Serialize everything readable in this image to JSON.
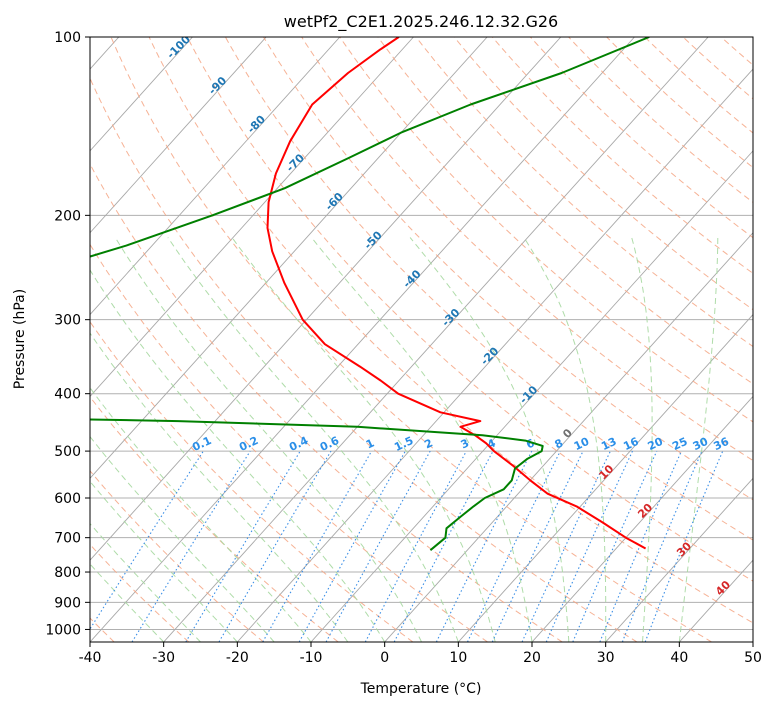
{
  "chart_data": {
    "type": "line",
    "title": "wetPf2_C2E1.2025.246.12.32.G26",
    "xlabel": "Temperature (°C)",
    "ylabel": "Pressure (hPa)",
    "xlim": [
      -40,
      50
    ],
    "ylim": [
      1050,
      100
    ],
    "x_ticks": [
      -40,
      -30,
      -20,
      -10,
      0,
      10,
      20,
      30,
      40,
      50
    ],
    "y_ticks": [
      100,
      200,
      300,
      400,
      500,
      600,
      700,
      800,
      900,
      1000
    ],
    "series": [
      {
        "name": "Temperature",
        "color": "#ff0000",
        "points": [
          [
            -72.0,
            100
          ],
          [
            -73.0,
            105
          ],
          [
            -74.5,
            115
          ],
          [
            -75.5,
            130
          ],
          [
            -74.0,
            150
          ],
          [
            -72.0,
            170
          ],
          [
            -69.5,
            190
          ],
          [
            -66.5,
            210
          ],
          [
            -63.0,
            230
          ],
          [
            -57.5,
            260
          ],
          [
            -50.5,
            300
          ],
          [
            -44.5,
            330
          ],
          [
            -37.0,
            360
          ],
          [
            -32.5,
            380
          ],
          [
            -28.5,
            400
          ],
          [
            -20.5,
            430
          ],
          [
            -14.0,
            445
          ],
          [
            -16.0,
            455
          ],
          [
            -13.0,
            470
          ],
          [
            -10.5,
            485
          ],
          [
            -8.5,
            500
          ],
          [
            -4.0,
            530
          ],
          [
            0.0,
            560
          ],
          [
            4.0,
            590
          ],
          [
            9.5,
            620
          ],
          [
            15.0,
            660
          ],
          [
            20.0,
            700
          ],
          [
            24.0,
            730
          ]
        ]
      },
      {
        "name": "Dewpoint",
        "color": "#008000",
        "points": [
          [
            -38.0,
            100
          ],
          [
            -45.5,
            115
          ],
          [
            -54.0,
            130
          ],
          [
            -60.0,
            145
          ],
          [
            -64.0,
            160
          ],
          [
            -69.0,
            180
          ],
          [
            -75.5,
            200
          ],
          [
            -83.5,
            225
          ],
          [
            -89.0,
            240
          ],
          [
            -108.0,
            260
          ],
          [
            -110.5,
            270
          ],
          [
            -109.0,
            285
          ],
          [
            -110.0,
            310
          ],
          [
            -115.5,
            340
          ],
          [
            -121.0,
            365
          ],
          [
            -146.0,
            395
          ],
          [
            -115.0,
            405
          ],
          [
            -142.0,
            420
          ],
          [
            -120.0,
            430
          ],
          [
            -55.0,
            445
          ],
          [
            -30.0,
            455
          ],
          [
            -12.0,
            470
          ],
          [
            -5.5,
            480
          ],
          [
            -2.5,
            490
          ],
          [
            -2.0,
            500
          ],
          [
            -3.0,
            515
          ],
          [
            -3.5,
            535
          ],
          [
            -2.5,
            560
          ],
          [
            -2.5,
            580
          ],
          [
            -4.0,
            600
          ],
          [
            -4.5,
            620
          ],
          [
            -5.0,
            645
          ],
          [
            -5.5,
            675
          ],
          [
            -4.5,
            700
          ],
          [
            -5.0,
            735
          ]
        ]
      }
    ],
    "dry_adiabat_labels": [
      "-100",
      "-90",
      "-80",
      "-70",
      "-60",
      "-50",
      "-40",
      "-30",
      "-20",
      "-10",
      "0",
      "10",
      "20",
      "30",
      "40"
    ],
    "dry_adiabat_label_values": [
      -100,
      -90,
      -80,
      -70,
      -60,
      -50,
      -40,
      -30,
      -20,
      -10,
      0,
      10,
      20,
      30,
      40
    ],
    "mixing_ratio_labels": [
      "0.1",
      "0.2",
      "0.4",
      "0.6",
      "1",
      "1.5",
      "2",
      "3",
      "4",
      "6",
      "8",
      "10",
      "13",
      "16",
      "20",
      "25",
      "30",
      "36"
    ],
    "mixing_ratio_values": [
      0.1,
      0.2,
      0.4,
      0.6,
      1,
      1.5,
      2,
      3,
      4,
      6,
      8,
      10,
      13,
      16,
      20,
      25,
      30,
      36
    ],
    "colors": {
      "isobar": "#b0b0b0",
      "isotherm": "#a8a8a8",
      "dry_adiabat": "#f4a582",
      "moist_adiabat": "#a6d8a0",
      "mixing_ratio": "#3a8ee6",
      "label_blue": "#1f77b4",
      "label_bright_blue": "#2b8fe8",
      "label_red": "#d62728",
      "label_gray": "#707070"
    }
  }
}
